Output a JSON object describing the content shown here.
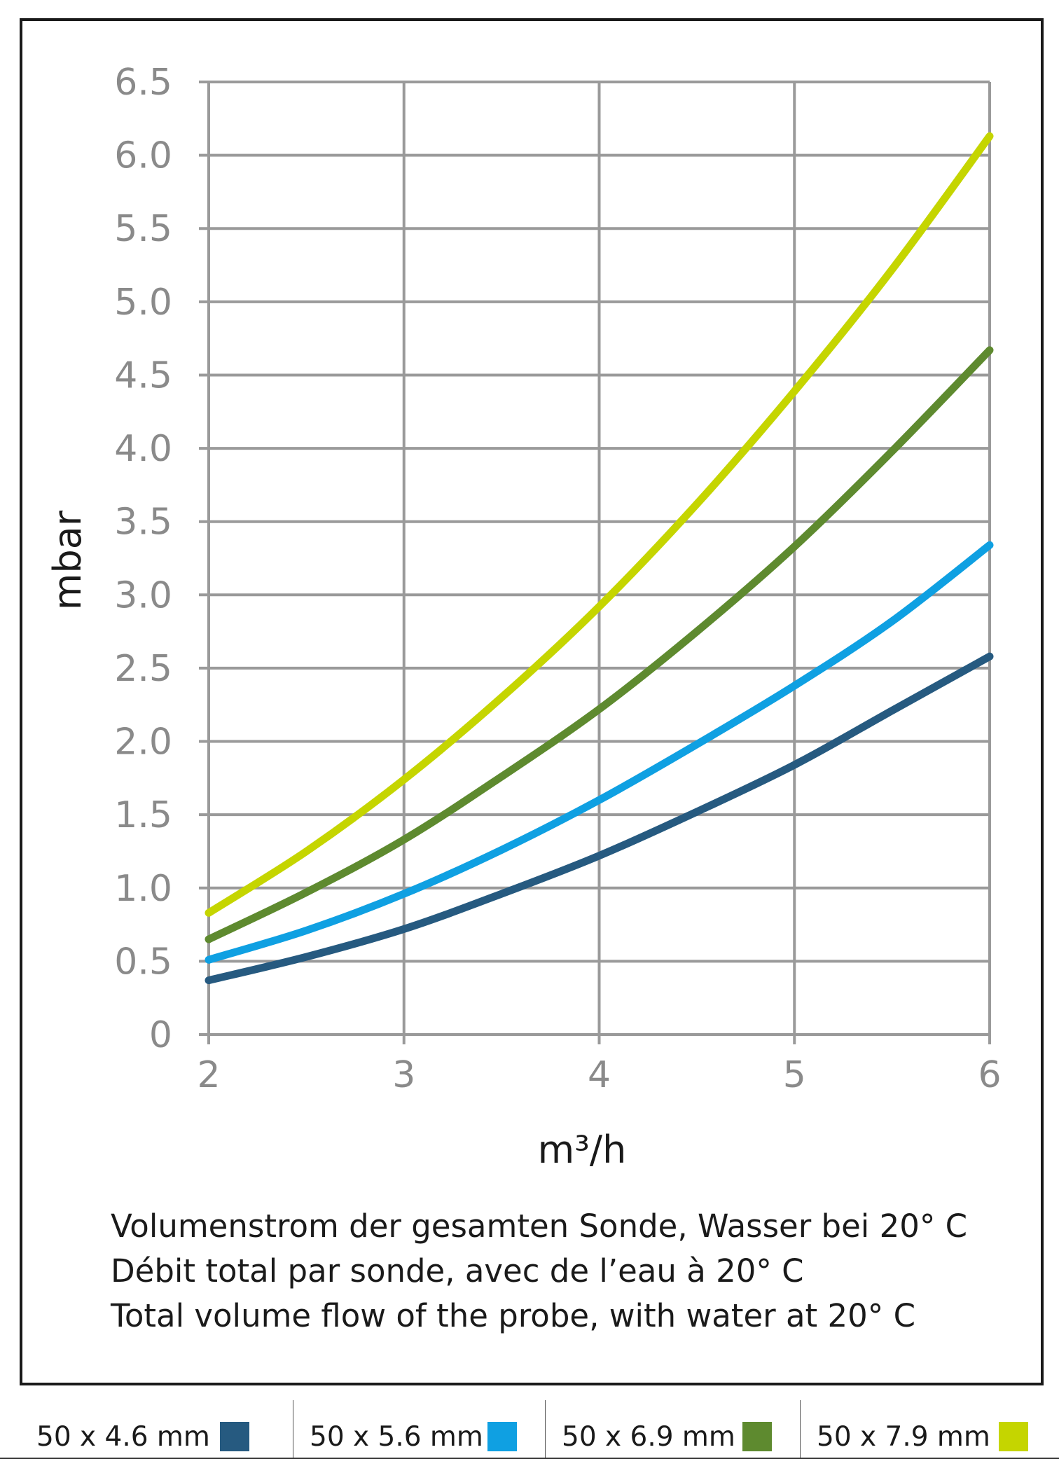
{
  "chart_data": {
    "type": "line",
    "xlabel": "m³/h",
    "ylabel": "mbar",
    "xlim": [
      2,
      6
    ],
    "ylim": [
      0,
      6.5
    ],
    "x_ticks": [
      "2",
      "3",
      "4",
      "5",
      "6"
    ],
    "y_ticks": [
      "0",
      "0.5",
      "1.0",
      "1.5",
      "2.0",
      "2.5",
      "3.0",
      "3.5",
      "4.0",
      "4.5",
      "5.0",
      "5.5",
      "6.0",
      "6.5"
    ],
    "grid": true,
    "x": [
      2,
      2.5,
      3,
      3.5,
      4,
      4.5,
      5,
      5.5,
      6
    ],
    "series": [
      {
        "name": "50 x 4.6 mm",
        "color": "#265a80",
        "values": [
          0.37,
          0.53,
          0.72,
          0.96,
          1.22,
          1.52,
          1.84,
          2.21,
          2.58
        ]
      },
      {
        "name": "50 x 5.6 mm",
        "color": "#0fa0e2",
        "values": [
          0.51,
          0.71,
          0.96,
          1.26,
          1.6,
          1.98,
          2.38,
          2.82,
          3.34
        ]
      },
      {
        "name": "50 x 6.9 mm",
        "color": "#5e8a2f",
        "values": [
          0.65,
          0.97,
          1.33,
          1.76,
          2.22,
          2.75,
          3.33,
          3.98,
          4.67
        ]
      },
      {
        "name": "50 x 7.9 mm",
        "color": "#c5d500",
        "values": [
          0.83,
          1.25,
          1.74,
          2.3,
          2.92,
          3.62,
          4.39,
          5.22,
          6.13
        ]
      }
    ],
    "legend_position": "bottom"
  },
  "caption_lines": [
    "Volumenstrom der gesamten Sonde, Wasser bei 20° C",
    "Débit total par sonde, avec de l’eau à 20° C",
    "Total volume flow of the probe, with water at 20° C"
  ]
}
